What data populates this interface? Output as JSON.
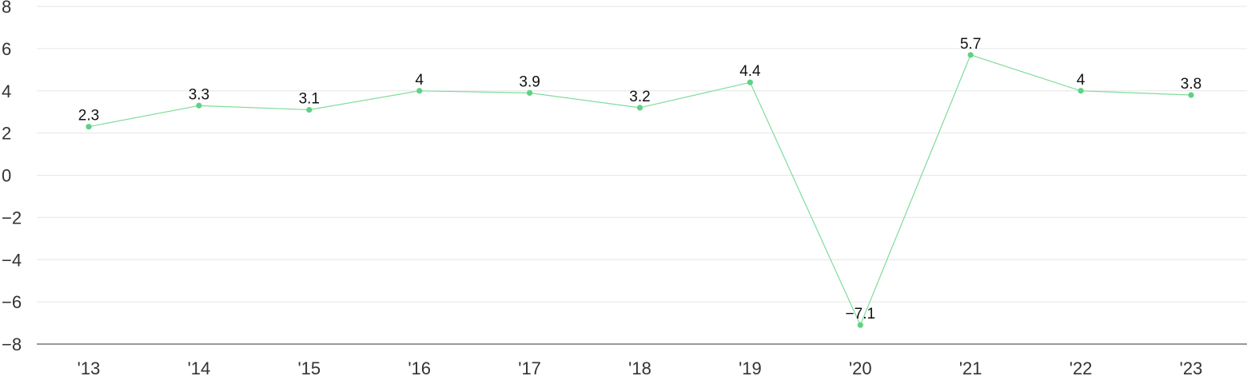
{
  "chart_data": {
    "type": "line",
    "categories": [
      "'13",
      "'14",
      "'15",
      "'16",
      "'17",
      "'18",
      "'19",
      "'20",
      "'21",
      "'22",
      "'23"
    ],
    "series": [
      {
        "values": [
          2.3,
          3.3,
          3.1,
          4,
          3.9,
          3.2,
          4.4,
          -7.1,
          5.7,
          4,
          3.8
        ]
      }
    ],
    "data_labels": [
      "2.3",
      "3.3",
      "3.1",
      "4",
      "3.9",
      "3.2",
      "4.4",
      "−7.1",
      "5.7",
      "4",
      "3.8"
    ],
    "y_ticks": [
      "8",
      "6",
      "4",
      "2",
      "0",
      "−2",
      "−4",
      "−6",
      "−8"
    ],
    "ylim": [
      -8,
      8
    ],
    "grid": true,
    "legend": "none",
    "line_color": "#7fdc9c",
    "marker_color": "#5fd184"
  }
}
